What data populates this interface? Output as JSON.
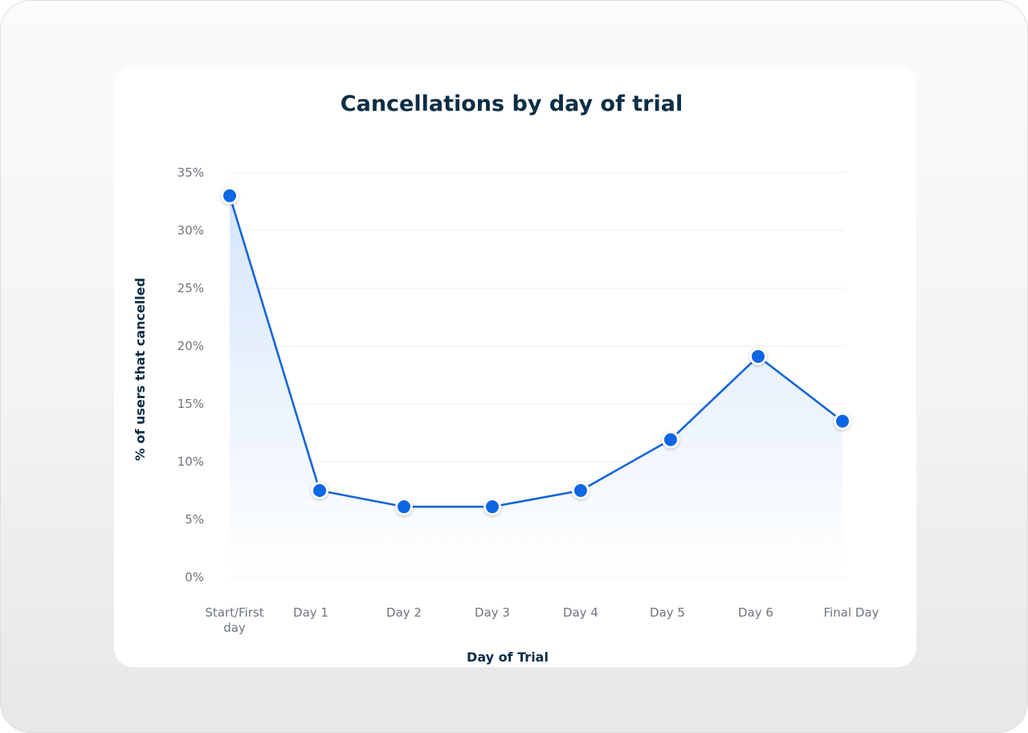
{
  "chart_data": {
    "type": "line",
    "title": "Cancellations by day of trial",
    "xlabel": "Day of Trial",
    "ylabel": "% of users that cancelled",
    "categories": [
      "Start/First day",
      "Day 1",
      "Day 2",
      "Day 3",
      "Day 4",
      "Day 5",
      "Day 6",
      "Final Day"
    ],
    "category_lines": [
      [
        "Start/First",
        "day"
      ],
      [
        "Day 1"
      ],
      [
        "Day 2"
      ],
      [
        "Day 3"
      ],
      [
        "Day 4"
      ],
      [
        "Day 5"
      ],
      [
        "Day 6"
      ],
      [
        "Final Day"
      ]
    ],
    "series": [
      {
        "name": "% of users that cancelled",
        "values": [
          33.0,
          7.5,
          6.1,
          6.1,
          7.5,
          11.9,
          19.1,
          13.5
        ]
      }
    ],
    "yticks": [
      0,
      5,
      10,
      15,
      20,
      25,
      30,
      35
    ],
    "ytick_labels": [
      "0%",
      "5%",
      "10%",
      "15%",
      "20%",
      "25%",
      "30%",
      "35%"
    ],
    "ylim": [
      0,
      35
    ],
    "grid": true,
    "legend": "none",
    "colors": {
      "line": "#1565d8",
      "marker": "#0a66e4",
      "area_top": "#d6e6fb",
      "area_bottom": "#ffffff"
    }
  }
}
